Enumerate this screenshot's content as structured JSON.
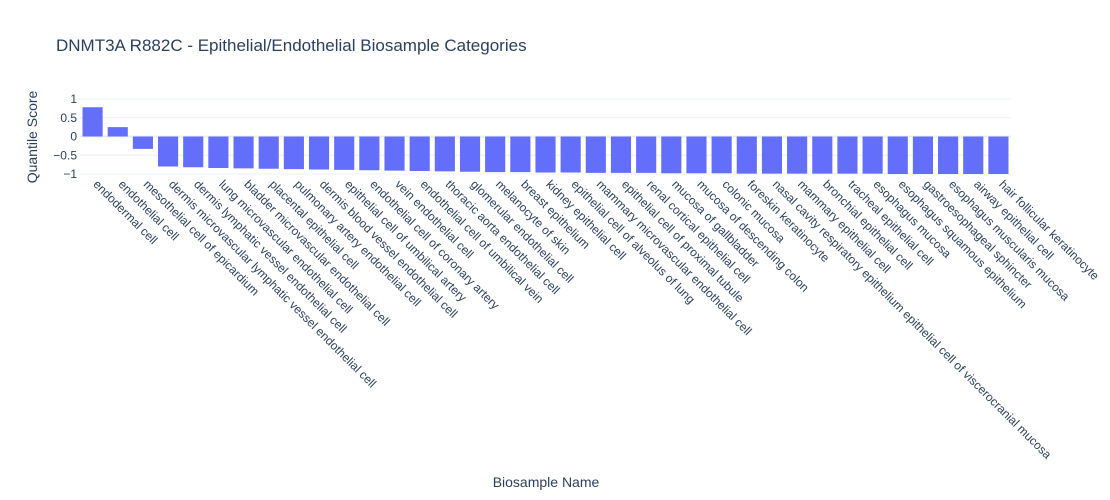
{
  "chart_data": {
    "type": "bar",
    "title": "DNMT3A R882C - Epithelial/Endothelial Biosample Categories",
    "xlabel": "Biosample Name",
    "ylabel": "Quantile Score",
    "ylim": [
      -1,
      1
    ],
    "yticks": [
      1,
      0.5,
      0,
      -0.5,
      -1
    ],
    "ytick_labels": [
      "1",
      "0.5",
      "0",
      "−0.5",
      "−1"
    ],
    "bar_color": "#636efa",
    "grid": true,
    "categories": [
      "endodermal cell",
      "endothelial cell",
      "mesothelial cell of epicardium",
      "dermis microvascular lymphatic vessel endothelial cell",
      "dermis lymphatic vessel endothelial cell",
      "lung microvascular endothelial cell",
      "bladder microvascular endothelial cell",
      "placental epithelial cell",
      "pulmonary artery endothelial cell",
      "dermis blood vessel endothelial cell",
      "epithelial cell of umbilical artery",
      "endothelial cell of coronary artery",
      "vein endothelial cell",
      "endothelial cell of umbilical vein",
      "thoracic aorta endothelial cell",
      "glomerular endothelial cell",
      "melanocyte of skin",
      "breast epithelium",
      "kidney epithelial cell",
      "epithelial cell of alveolus of lung",
      "mammary microvascular endothelial cell",
      "epithelial cell of proximal tubule",
      "renal cortical epithelial cell",
      "mucosa of gallbladder",
      "mucosa of descending colon",
      "colonic mucosa",
      "foreskin keratinocyte",
      "nasal cavity respiratory epithelium epithelial cell of viscerocranial mucosa",
      "mammary epithelial cell",
      "bronchial epithelial cell",
      "tracheal epithelial cell",
      "esophagus mucosa",
      "esophagus squamous epithelium",
      "gastroesophageal sphincter",
      "esophagus muscularis mucosa",
      "airway epithelial cell",
      "hair follicular keratinocyte"
    ],
    "values": [
      0.78,
      0.25,
      -0.33,
      -0.8,
      -0.82,
      -0.84,
      -0.85,
      -0.86,
      -0.87,
      -0.88,
      -0.89,
      -0.9,
      -0.91,
      -0.92,
      -0.93,
      -0.94,
      -0.95,
      -0.95,
      -0.96,
      -0.96,
      -0.97,
      -0.97,
      -0.97,
      -0.98,
      -0.98,
      -0.98,
      -0.99,
      -0.99,
      -0.99,
      -0.99,
      -0.99,
      -0.99,
      -1.0,
      -1.0,
      -1.0,
      -1.0,
      -1.0
    ]
  }
}
